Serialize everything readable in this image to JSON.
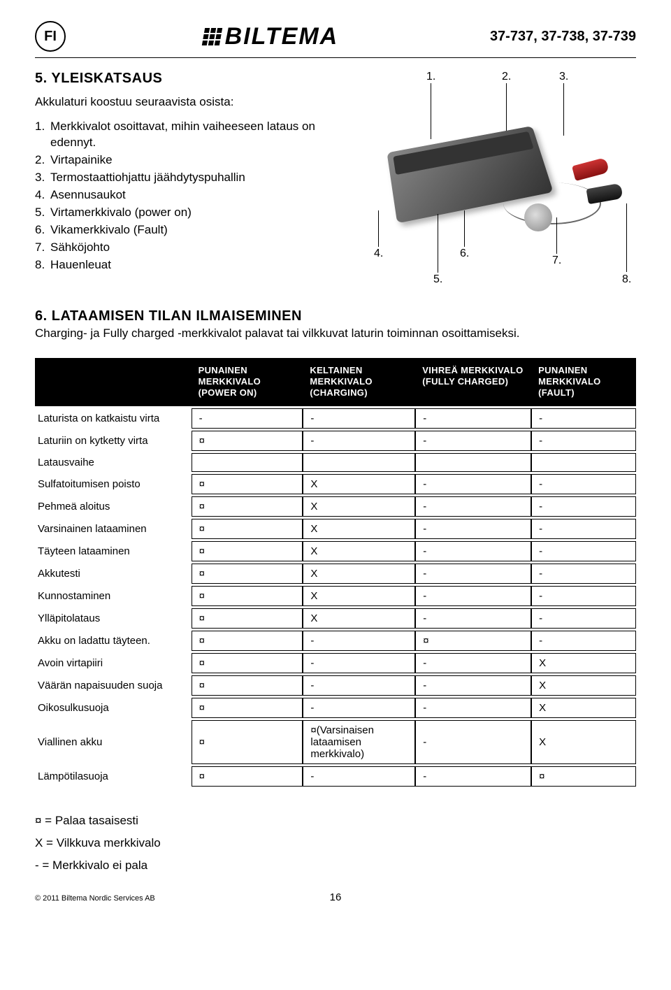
{
  "header": {
    "lang_code": "FI",
    "logo_text": "BILTEMA",
    "part_numbers": "37-737, 37-738, 37-739"
  },
  "section5": {
    "title": "5. YLEISKATSAUS",
    "intro": "Akkulaturi koostuu seuraavista osista:",
    "items": [
      "Merkkivalot osoittavat, mihin vaiheeseen lataus on edennyt.",
      "Virtapainike",
      "Termostaattiohjattu jäähdytyspuhallin",
      "Asennusaukot",
      "Virtamerkkivalo (power on)",
      "Vikamerkkivalo (Fault)",
      "Sähköjohto",
      "Hauenleuat"
    ],
    "callouts": {
      "c1": "1.",
      "c2": "2.",
      "c3": "3.",
      "c4": "4.",
      "c5": "5.",
      "c6": "6.",
      "c7": "7.",
      "c8": "8."
    }
  },
  "section6": {
    "title": "6. LATAAMISEN TILAN ILMAISEMINEN",
    "body": "Charging- ja Fully charged -merkkivalot palavat tai vilkkuvat laturin toiminnan osoittamiseksi."
  },
  "table": {
    "headers": {
      "blank": "",
      "col1": "PUNAINEN MERKKIVALO (POWER ON)",
      "col2": "KELTAINEN MERKKIVALO (CHARGING)",
      "col3": "VIHREÄ MERKKIVALO (FULLY CHARGED)",
      "col4": "PUNAINEN MERKKIVALO (FAULT)"
    },
    "rows": [
      {
        "label": "Laturista on katkaistu virta",
        "c": [
          "-",
          "-",
          "-",
          "-"
        ]
      },
      {
        "label": "Laturiin on kytketty virta",
        "c": [
          "¤",
          "-",
          "-",
          "-"
        ]
      },
      {
        "label": "Latausvaihe",
        "c": [
          "",
          "",
          "",
          ""
        ]
      },
      {
        "label": "Sulfatoitumisen poisto",
        "c": [
          "¤",
          "X",
          "-",
          "-"
        ]
      },
      {
        "label": "Pehmeä aloitus",
        "c": [
          "¤",
          "X",
          "-",
          "-"
        ]
      },
      {
        "label": "Varsinainen lataaminen",
        "c": [
          "¤",
          "X",
          "-",
          "-"
        ]
      },
      {
        "label": "Täyteen lataaminen",
        "c": [
          "¤",
          "X",
          "-",
          "-"
        ]
      },
      {
        "label": "Akkutesti",
        "c": [
          "¤",
          "X",
          "-",
          "-"
        ]
      },
      {
        "label": "Kunnostaminen",
        "c": [
          "¤",
          "X",
          "-",
          "-"
        ]
      },
      {
        "label": "Ylläpitolataus",
        "c": [
          "¤",
          "X",
          "-",
          "-"
        ]
      },
      {
        "label": "Akku on ladattu täyteen.",
        "c": [
          "¤",
          "-",
          "¤",
          "-"
        ]
      },
      {
        "label": "Avoin virtapiiri",
        "c": [
          "¤",
          "-",
          "-",
          "X"
        ]
      },
      {
        "label": "Väärän napaisuuden suoja",
        "c": [
          "¤",
          "-",
          "-",
          "X"
        ]
      },
      {
        "label": "Oikosulkusuoja",
        "c": [
          "¤",
          "-",
          "-",
          "X"
        ]
      },
      {
        "label": "Viallinen akku",
        "c": [
          "¤",
          "¤(Varsinaisen lataamisen merkkivalo)",
          "-",
          "X"
        ]
      },
      {
        "label": "Lämpötilasuoja",
        "c": [
          "¤",
          "-",
          "-",
          "¤"
        ]
      }
    ]
  },
  "legend": {
    "l1": "¤ = Palaa tasaisesti",
    "l2": "X = Vilkkuva merkkivalo",
    "l3": "- = Merkkivalo ei pala"
  },
  "footer": {
    "copyright": "© 2011 Biltema Nordic Services AB",
    "page": "16"
  }
}
